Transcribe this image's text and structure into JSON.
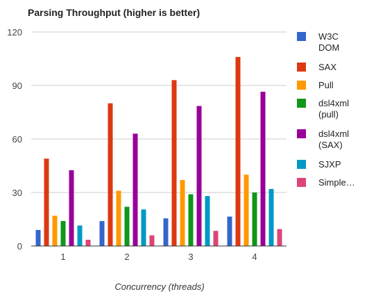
{
  "chart_data": {
    "type": "bar",
    "title": "Parsing Throughput (higher is better)",
    "xlabel": "Concurrency (threads)",
    "ylabel": "",
    "categories": [
      "1",
      "2",
      "3",
      "4"
    ],
    "ylim": [
      0,
      120
    ],
    "yticks": [
      0,
      30,
      60,
      90,
      120
    ],
    "grid": true,
    "legend": "right",
    "series": [
      {
        "name": "W3C DOM",
        "legend_lines": [
          "W3C",
          "DOM"
        ],
        "color": "#3366cc",
        "values": [
          9,
          14,
          15.5,
          16.5
        ]
      },
      {
        "name": "SAX",
        "legend_lines": [
          "SAX"
        ],
        "color": "#dc3912",
        "values": [
          49,
          80,
          93,
          106
        ]
      },
      {
        "name": "Pull",
        "legend_lines": [
          "Pull"
        ],
        "color": "#ff9900",
        "values": [
          17,
          31,
          37,
          40
        ]
      },
      {
        "name": "dsl4xml (pull)",
        "legend_lines": [
          "dsl4xml",
          "(pull)"
        ],
        "color": "#109618",
        "values": [
          14,
          22,
          29,
          30
        ]
      },
      {
        "name": "dsl4xml (SAX)",
        "legend_lines": [
          "dsl4xml",
          "(SAX)"
        ],
        "color": "#990099",
        "values": [
          42.5,
          63,
          78.5,
          86.5
        ]
      },
      {
        "name": "SJXP",
        "legend_lines": [
          "SJXP"
        ],
        "color": "#0099c6",
        "values": [
          11.5,
          20.5,
          28,
          32
        ]
      },
      {
        "name": "Simple…",
        "legend_lines": [
          "Simple…"
        ],
        "color": "#dd4477",
        "values": [
          3.5,
          6,
          8.5,
          9.5
        ]
      }
    ]
  }
}
